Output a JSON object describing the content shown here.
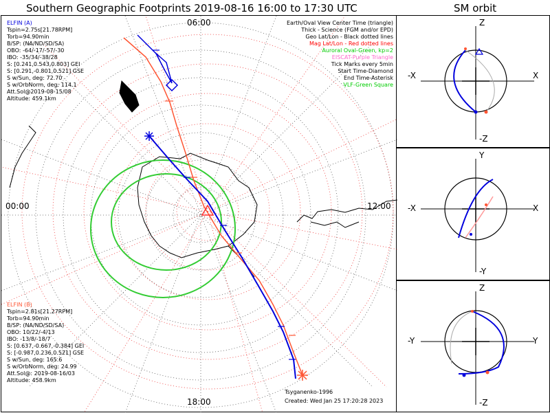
{
  "title": "Southern Geographic Footprints 2019-08-16 16:00 to 17:30 UTC",
  "sm_title": "SM orbit",
  "clock_labels": {
    "top": "06:00",
    "left": "00:00",
    "right": "12:00",
    "bottom": "18:00"
  },
  "elfin_a": {
    "header": "ELFIN (A)",
    "lines": [
      "Tspin=2.75s[21.78RPM]",
      "Torb=94.90min",
      "B/SP: (NA/ND/SD/SA)",
      "OBO: -64/-17/-57/-30",
      "IBO: -35/34/-38/28",
      "S: [0.241,0.543,0.803] GEI",
      "S: [0.291,-0.801,0.521] GSE",
      "S w/Sun, deg: 72.70",
      "S w/OrbNorm, deg: 114.1",
      "Att.Sol@2019-08-15/08",
      "Altitude: 459.1km"
    ]
  },
  "elfin_b": {
    "header": "ELFIN (B)",
    "lines": [
      "Tspin=2.81s[21.27RPM]",
      "Torb=94.90min",
      "B/SP: (NA/ND/SD/SA)",
      "OBO: 10/22/-4/13",
      "IBO: -13/8/-18/7",
      "S: [0.637,-0.667,-0.384] GEI",
      "S: [-0.987,0.236,0.521] GSE",
      "S w/Sun, deg: 165.6",
      "S w/OrbNorm, deg: 24.99",
      "Att.Sol@: 2019-08-16/03",
      "Altitude: 458.9km"
    ]
  },
  "legend": [
    {
      "text": "Earth/Oval View Center Time (triangle)",
      "color": "#000000"
    },
    {
      "text": "Thick - Science (FGM and/or EPD)",
      "color": "#000000"
    },
    {
      "text": "Geo Lat/Lon - Black dotted lines",
      "color": "#000000"
    },
    {
      "text": "Mag Lat/Lon - Red dotted lines",
      "color": "#ff0000"
    },
    {
      "text": "Auroral Oval-Green, kp=2",
      "color": "#00cc00"
    },
    {
      "text": "EISCAT-Purple Triangle",
      "color": "#ff66cc"
    },
    {
      "text": "Tick Marks every 5min",
      "color": "#000000"
    },
    {
      "text": "Start Time-Diamond",
      "color": "#000000"
    },
    {
      "text": "End Time-Asterisk",
      "color": "#000000"
    },
    {
      "text": "VLF-Green Square",
      "color": "#00cc00"
    }
  ],
  "credits": {
    "author": "Tsyganenko-1996",
    "created": "Created: Wed Jan 25 17:20:28 2023"
  },
  "sm_panels": [
    {
      "top": "Z",
      "bottom": "-Z",
      "left": "-X",
      "right": "X"
    },
    {
      "top": "Y",
      "bottom": "-Y",
      "left": "-X",
      "right": "X"
    },
    {
      "top": "Z",
      "bottom": "-Z",
      "left": "-Y",
      "right": "Y"
    }
  ],
  "colors": {
    "elfin_a": "#0000dd",
    "elfin_b": "#ff5533",
    "oval": "#33cc33",
    "mag_grid": "#ee3333",
    "geo_grid": "#444444"
  }
}
